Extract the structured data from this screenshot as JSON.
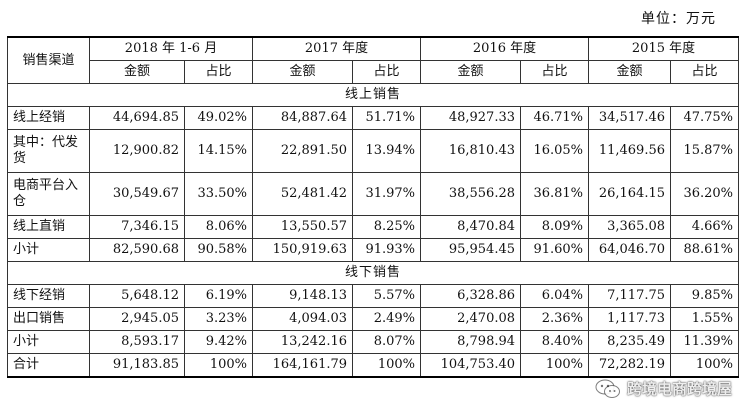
{
  "unit": "单位：万元",
  "header": {
    "channel": "销售渠道",
    "periods": [
      "2018 年 1-6 月",
      "2017 年度",
      "2016 年度",
      "2015 年度"
    ],
    "amount": "金额",
    "share": "占比"
  },
  "sections": {
    "online": "线上销售",
    "offline": "线下销售"
  },
  "rows": {
    "online_distribution": {
      "label": "线上经销",
      "values": [
        "44,694.85",
        "49.02%",
        "84,887.64",
        "51.71%",
        "48,927.33",
        "46.71%",
        "34,517.46",
        "47.75%"
      ]
    },
    "dropship": {
      "label": "其中：代发货",
      "values": [
        "12,900.82",
        "14.15%",
        "22,891.50",
        "13.94%",
        "16,810.43",
        "16.05%",
        "11,469.56",
        "15.87%"
      ]
    },
    "platform_warehouse": {
      "label": "电商平台入仓",
      "values": [
        "30,549.67",
        "33.50%",
        "52,481.42",
        "31.97%",
        "38,556.28",
        "36.81%",
        "26,164.15",
        "36.20%"
      ]
    },
    "online_direct": {
      "label": "线上直销",
      "values": [
        "7,346.15",
        "8.06%",
        "13,550.57",
        "8.25%",
        "8,470.84",
        "8.09%",
        "3,365.08",
        "4.66%"
      ]
    },
    "online_subtotal": {
      "label": "小计",
      "values": [
        "82,590.68",
        "90.58%",
        "150,919.63",
        "91.93%",
        "95,954.45",
        "91.60%",
        "64,046.70",
        "88.61%"
      ]
    },
    "offline_distribution": {
      "label": "线下经销",
      "values": [
        "5,648.12",
        "6.19%",
        "9,148.13",
        "5.57%",
        "6,328.86",
        "6.04%",
        "7,117.75",
        "9.85%"
      ]
    },
    "export": {
      "label": "出口销售",
      "values": [
        "2,945.05",
        "3.23%",
        "4,094.03",
        "2.49%",
        "2,470.08",
        "2.36%",
        "1,117.73",
        "1.55%"
      ]
    },
    "offline_subtotal": {
      "label": "小计",
      "values": [
        "8,593.17",
        "9.42%",
        "13,242.16",
        "8.07%",
        "8,798.94",
        "8.40%",
        "8,235.49",
        "11.39%"
      ]
    },
    "total": {
      "label": "合计",
      "values": [
        "91,183.85",
        "100%",
        "164,161.79",
        "100%",
        "104,753.40",
        "100%",
        "72,282.19",
        "100%"
      ]
    }
  },
  "watermark": {
    "text": "跨境电商跨境屋",
    "icon": "wechat-icon"
  }
}
